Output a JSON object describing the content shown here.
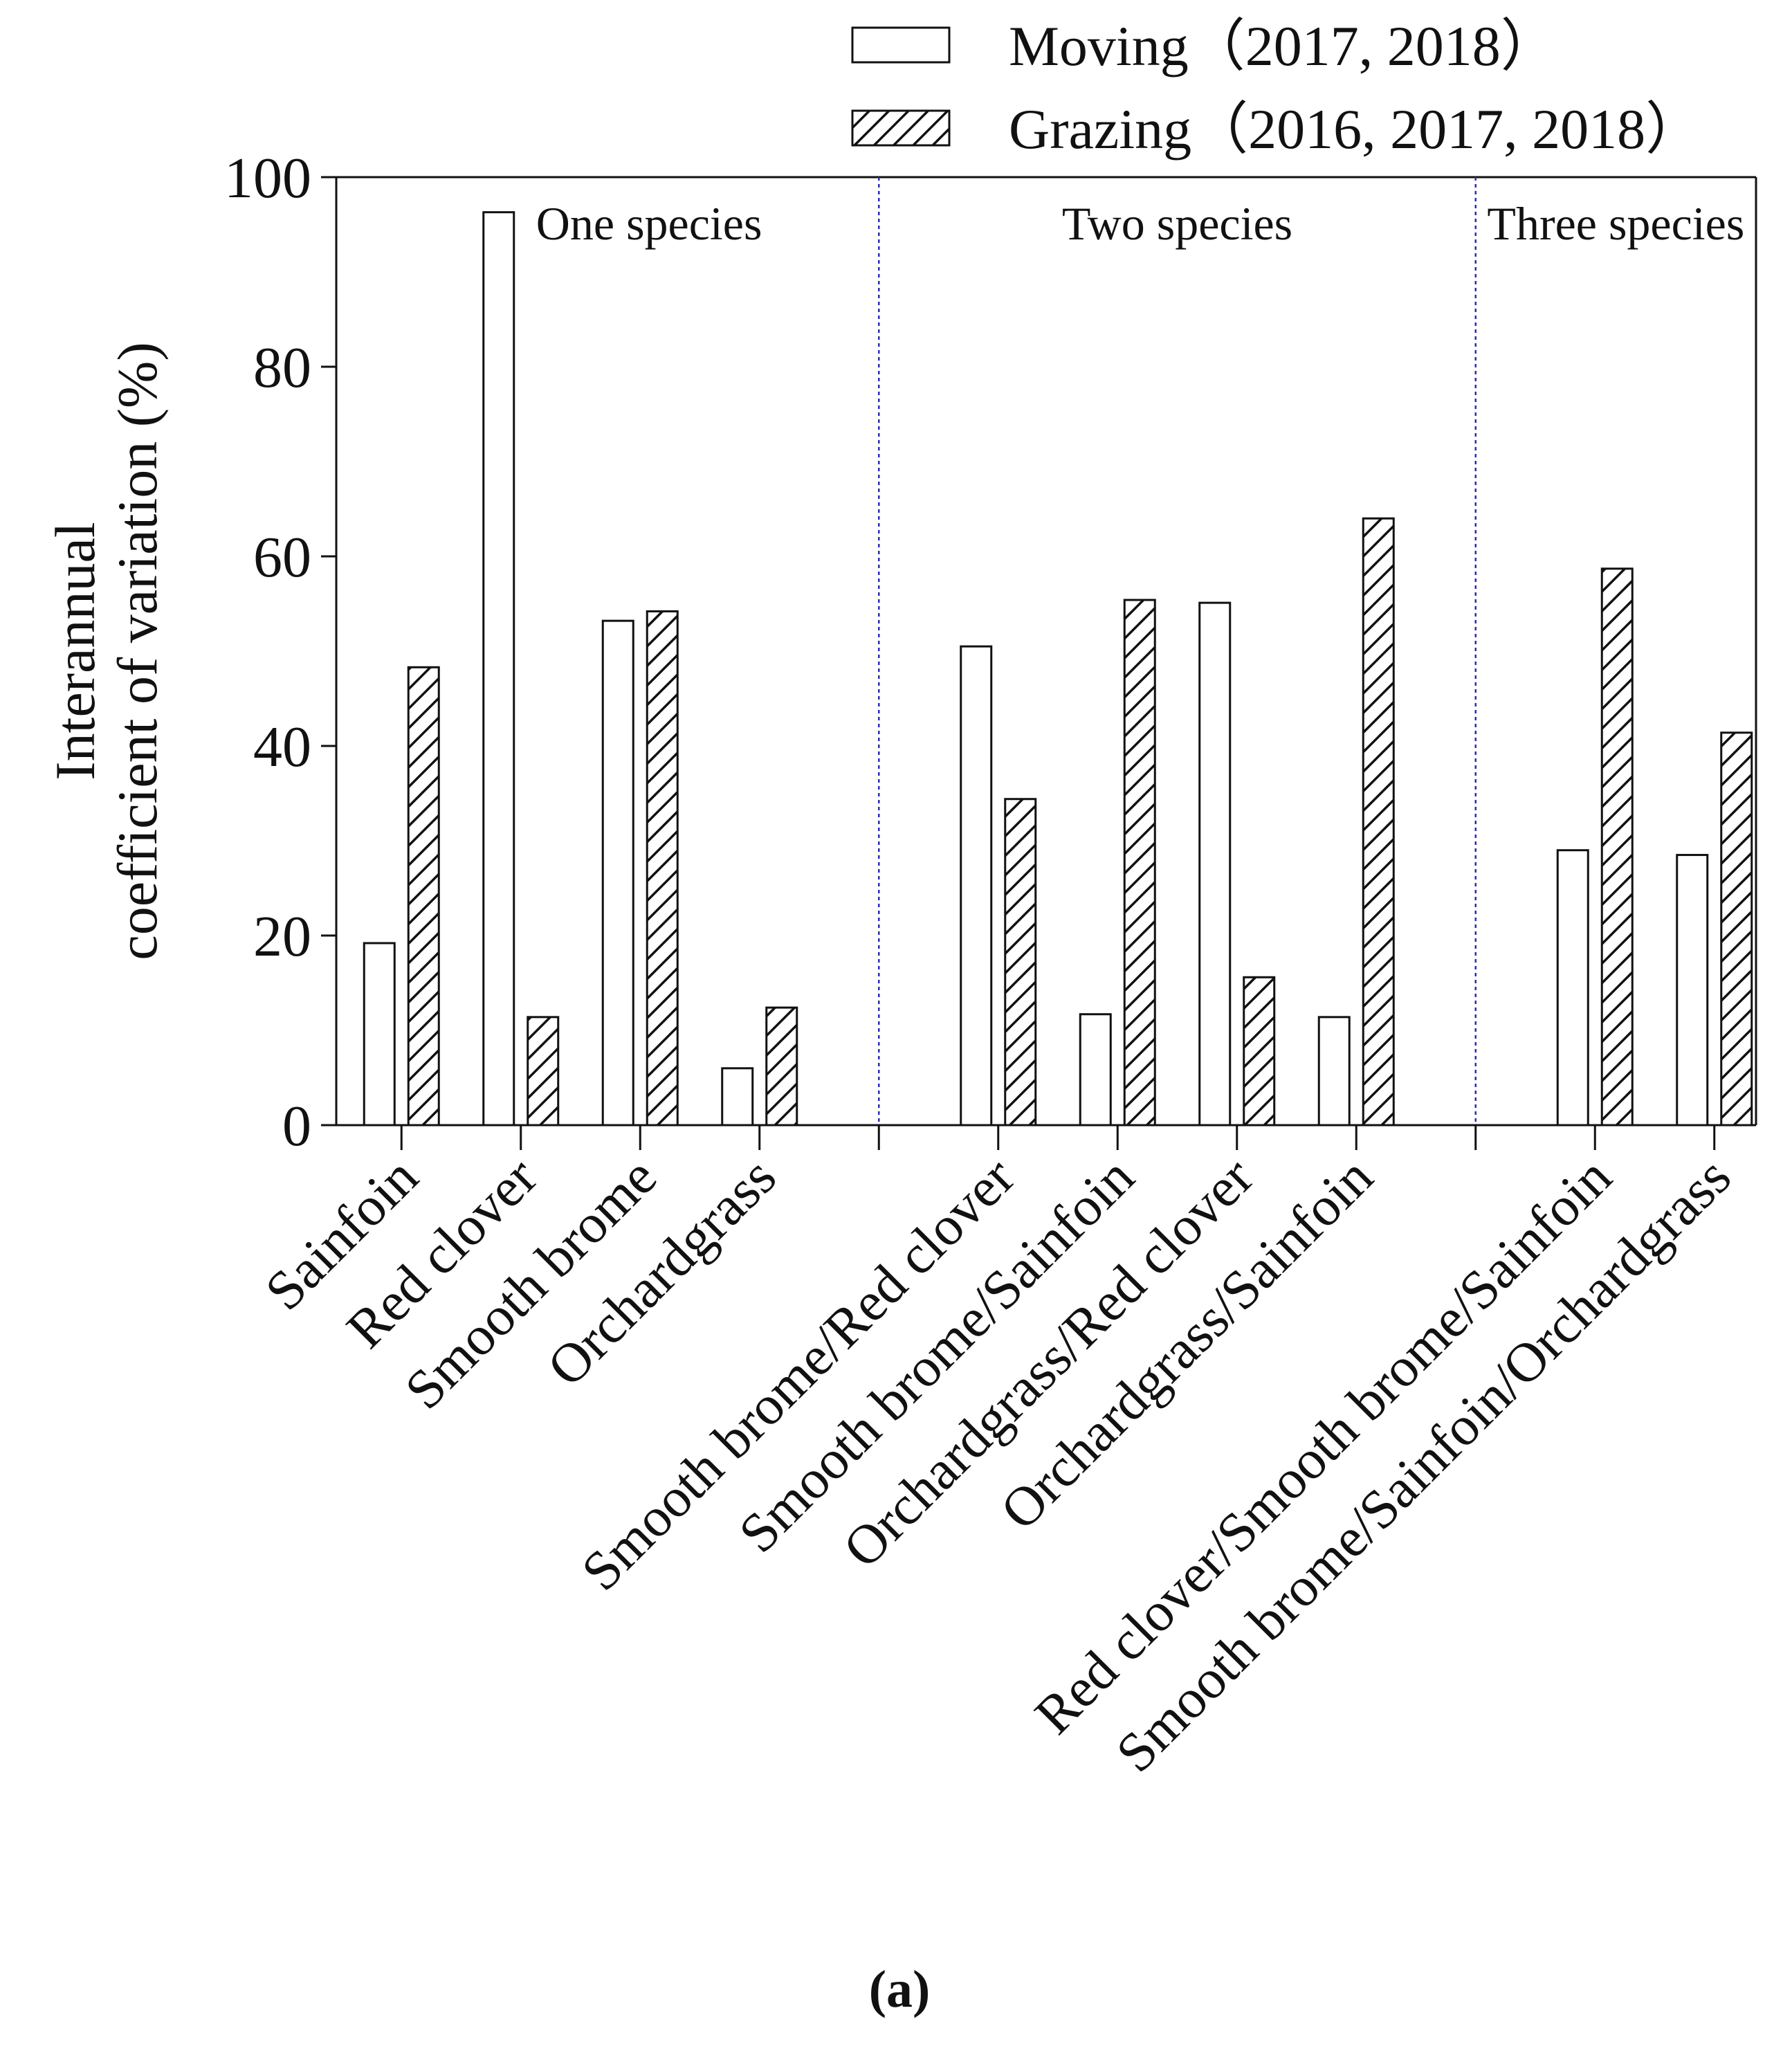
{
  "figure_label": "(a)",
  "colors": {
    "ink": "#111111",
    "divider": "#2b2bb5",
    "background": "#ffffff"
  },
  "chart_data": {
    "type": "bar",
    "ylabel": [
      "Interannual",
      "coefficient of variation (%)"
    ],
    "xlabel": "",
    "ylim": [
      0,
      100
    ],
    "yticks": [
      0,
      20,
      40,
      60,
      80,
      100
    ],
    "grid": false,
    "legend_position": "top-right",
    "categories": [
      "Sainfoin",
      "Red clover",
      "Smooth brome",
      "Orchardgrass",
      "Smooth brome/Red clover",
      "Smooth brome/Sainfoin",
      "Orchardgrass/Red clover",
      "Orchardgrass/Sainfoin",
      "Red clover/Smooth brome/Sainfoin",
      "Smooth brome/Sainfoin/Orchardgrass"
    ],
    "groups": [
      {
        "label": "One species",
        "count": 4
      },
      {
        "label": "Two species",
        "count": 4
      },
      {
        "label": "Three species",
        "count": 2
      }
    ],
    "series": [
      {
        "name": "Moving（2017, 2018）",
        "pattern": "open",
        "values": [
          19.2,
          96.3,
          53.2,
          6.0,
          50.5,
          11.7,
          55.1,
          11.4,
          29.0,
          28.5
        ]
      },
      {
        "name": "Grazing（2016, 2017, 2018）",
        "pattern": "hatched",
        "values": [
          48.3,
          11.4,
          54.2,
          12.4,
          34.4,
          55.4,
          15.6,
          64.0,
          58.7,
          41.4
        ]
      }
    ]
  }
}
